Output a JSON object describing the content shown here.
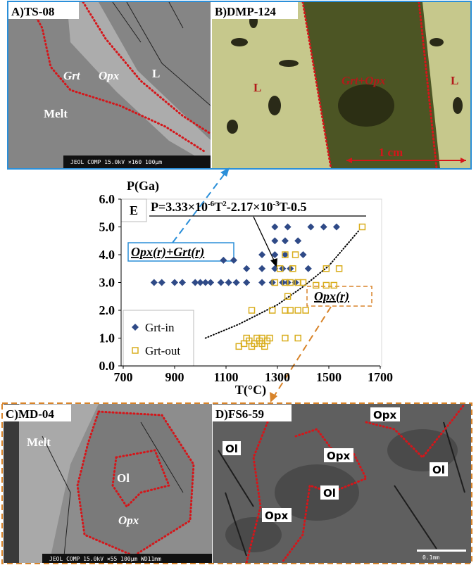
{
  "panels": [
    {
      "label": "A)TS-08",
      "notes": [
        "Grt",
        "Opx",
        "L",
        "Melt"
      ],
      "scale_bar": "JEOL COMP  15.0kV  ×160  100μm"
    },
    {
      "label": "B)DMP-124",
      "notes": [
        "L",
        "Grt+Opx",
        "L",
        "1 cm"
      ]
    },
    {
      "label": "C)MD-04",
      "notes": [
        "Melt",
        "Ol",
        "Opx"
      ],
      "scale_bar": "JEOL COMP  15.0kV  ×55  100μm  WD11mm"
    },
    {
      "label": "D)FS6-59",
      "notes": [
        "Opx",
        "Ol",
        "Opx",
        "Ol",
        "Ol",
        "Opx"
      ],
      "scale_bar": "0.1mm"
    }
  ],
  "chart_data": {
    "type": "scatter",
    "panel_label": "E",
    "equation": [
      "P=3.33×10",
      "-6",
      "T",
      "2",
      "-2.17×10",
      "-3",
      "T-0.5"
    ],
    "y_label": "P(Ga)",
    "x_label": "T(°C)",
    "annotations": [
      "Opx(r)+Grt(r)",
      "Opx(r)"
    ],
    "xlim": [
      700,
      1700
    ],
    "xticks": [
      700,
      900,
      1100,
      1300,
      1500,
      1700
    ],
    "ylim": [
      0,
      6
    ],
    "yticks": [
      {
        "value": 0,
        "label": "0.0"
      },
      {
        "value": 1,
        "label": "1.0"
      },
      {
        "value": 2,
        "label": "2.0"
      },
      {
        "value": 3,
        "label": "3.0"
      },
      {
        "value": 4,
        "label": "4.0"
      },
      {
        "value": 5,
        "label": "5.0"
      },
      {
        "value": 6,
        "label": "6.0"
      }
    ],
    "series": [
      {
        "name": "Grt-in",
        "color": "#2f4a87",
        "marker": "diamond",
        "x": [
          820,
          850,
          900,
          930,
          980,
          1000,
          1020,
          1040,
          1080,
          1110,
          1140,
          1180,
          1240,
          1280,
          1320,
          1340,
          1370,
          1180,
          1240,
          1290,
          1320,
          1350,
          1420,
          1090,
          1130,
          1240,
          1290,
          1330,
          1400,
          1290,
          1330,
          1380,
          1290,
          1340,
          1430,
          1480,
          1530
        ],
        "values": [
          3,
          3,
          3,
          3,
          3,
          3,
          3,
          3,
          3,
          3,
          3,
          3,
          3,
          3,
          3,
          3,
          3,
          3.5,
          3.5,
          3.5,
          3.5,
          3.5,
          3.5,
          3.8,
          3.8,
          4,
          4,
          4,
          4,
          4.5,
          4.5,
          4.5,
          5,
          5,
          5,
          5,
          5
        ]
      },
      {
        "name": "Grt-out",
        "color": "#d9ae1e",
        "marker": "square",
        "x": [
          1630,
          1330,
          1370,
          1310,
          1360,
          1490,
          1540,
          1290,
          1330,
          1350,
          1380,
          1400,
          1450,
          1490,
          1520,
          1340,
          1200,
          1280,
          1330,
          1350,
          1380,
          1410,
          1180,
          1220,
          1240,
          1270,
          1330,
          1380,
          1190,
          1230,
          1260,
          1170,
          1210,
          1240,
          1150,
          1200,
          1250
        ],
        "values": [
          5,
          4,
          4,
          3.5,
          3.5,
          3.5,
          3.5,
          3,
          3,
          3,
          3,
          3,
          2.9,
          2.9,
          2.9,
          2.5,
          2,
          2,
          2,
          2,
          2,
          2,
          1,
          1,
          1,
          1,
          1,
          1,
          0.9,
          0.9,
          0.9,
          0.8,
          0.8,
          0.8,
          0.7,
          0.7,
          0.7
        ]
      }
    ],
    "fit": {
      "x": [
        1020,
        1150,
        1300,
        1400,
        1500,
        1620
      ],
      "values": [
        1,
        1.5,
        2.2,
        2.85,
        3.6,
        4.9
      ]
    }
  }
}
